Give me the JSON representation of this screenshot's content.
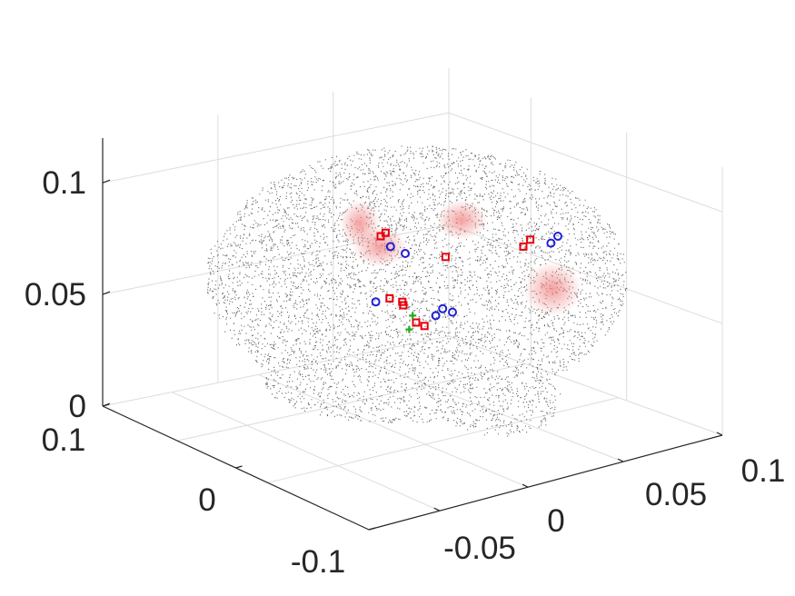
{
  "chart_data": {
    "type": "scatter3d",
    "title": "",
    "xlabel": "",
    "ylabel": "",
    "zlabel": "",
    "grid": true,
    "view": "3d",
    "xlim": [
      -0.1,
      0.1
    ],
    "ylim": [
      -0.1,
      0.1
    ],
    "zlim": [
      0,
      0.12
    ],
    "axes": {
      "z": {
        "ticks": [
          0,
          0.05,
          0.1
        ],
        "tick_labels": [
          "0",
          "0.05",
          "0.1"
        ]
      },
      "x": {
        "ticks": [
          -0.1,
          0,
          0.1
        ],
        "tick_labels": [
          "-0.1",
          "0",
          "0.1"
        ]
      },
      "y": {
        "ticks": [
          -0.05,
          0,
          0.05,
          0.1
        ],
        "tick_labels": [
          "-0.05",
          "0",
          "0.05",
          "0.1"
        ]
      }
    },
    "colors": {
      "cloud": "#333333",
      "region": "#f08080",
      "marker_red": "#e8000b",
      "marker_blue": "#1f1fd6",
      "marker_green": "#22aa22",
      "grid": "#dcdcdc",
      "axis": "#262626"
    },
    "series": [
      {
        "kind": "cloud",
        "marker": "dot"
      },
      {
        "kind": "highlight-region",
        "marker": "blob"
      },
      {
        "kind": "markers",
        "marker": "square",
        "color": "red",
        "points": [
          [
            0.005,
            -0.07,
            0.085
          ],
          [
            0.006,
            -0.068,
            0.086
          ],
          [
            0.01,
            -0.062,
            0.066
          ],
          [
            0.008,
            -0.068,
            0.067
          ],
          [
            0.014,
            -0.058,
            0.06
          ],
          [
            0.016,
            -0.055,
            0.059
          ],
          [
            0.04,
            -0.02,
            0.082
          ],
          [
            0.042,
            -0.018,
            0.084
          ],
          [
            0.012,
            -0.064,
            0.065
          ],
          [
            0.02,
            -0.046,
            0.079
          ]
        ]
      },
      {
        "kind": "markers",
        "marker": "circle",
        "color": "blue",
        "points": [
          [
            0.007,
            -0.066,
            0.082
          ],
          [
            0.004,
            -0.072,
            0.066
          ],
          [
            0.02,
            -0.048,
            0.064
          ],
          [
            0.022,
            -0.044,
            0.063
          ],
          [
            0.048,
            -0.012,
            0.083
          ],
          [
            0.05,
            -0.01,
            0.085
          ],
          [
            0.018,
            -0.05,
            0.062
          ],
          [
            0.01,
            -0.06,
            0.08
          ]
        ]
      },
      {
        "kind": "markers",
        "marker": "plus",
        "color": "green",
        "points": [
          [
            0.012,
            -0.06,
            0.058
          ],
          [
            0.013,
            -0.059,
            0.062
          ]
        ]
      }
    ]
  }
}
